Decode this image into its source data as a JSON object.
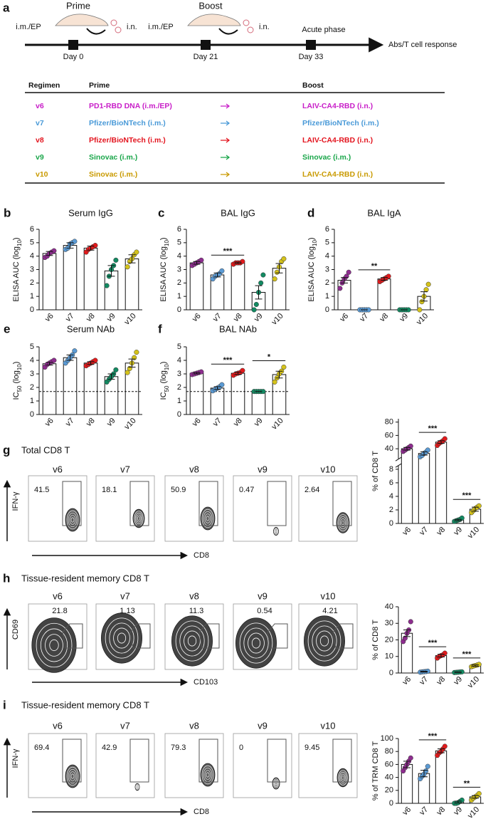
{
  "timeline": {
    "panel": "a",
    "prime": {
      "label": "Prime",
      "routes": [
        "i.m./EP",
        "i.n."
      ],
      "day": "Day 0"
    },
    "boost": {
      "label": "Boost",
      "routes": [
        "i.m./EP",
        "i.n."
      ],
      "day": "Day 21"
    },
    "acute": {
      "label": "Acute phase",
      "day": "Day 33"
    },
    "endpoint": "Abs/T cell response"
  },
  "table": {
    "header": [
      "Regimen",
      "Prime",
      "Boost"
    ],
    "rows": [
      {
        "regimen": "v6",
        "prime": "PD1-RBD DNA (i.m./EP)",
        "boost": "LAIV-CA4-RBD (i.n.)",
        "color": "#c81ec8"
      },
      {
        "regimen": "v7",
        "prime": "Pfizer/BioNTech (i.m.)",
        "boost": "Pfizer/BioNTech (i.m.)",
        "color": "#4a9ad8"
      },
      {
        "regimen": "v8",
        "prime": "Pfizer/BioNTech (i.m.)",
        "boost": "LAIV-CA4-RBD (i.n.)",
        "color": "#e3141e"
      },
      {
        "regimen": "v9",
        "prime": "Sinovac (i.m.)",
        "boost": "Sinovac (i.m.)",
        "color": "#1aa64a"
      },
      {
        "regimen": "v10",
        "prime": "Sinovac (i.m.)",
        "boost": "LAIV-CA4-RBD (i.n.)",
        "color": "#c99a00"
      }
    ]
  },
  "chart_data": [
    {
      "type": "bar",
      "panel": "b",
      "title": "Serum IgG",
      "ylabel": [
        "ELISA AUC (log",
        "10",
        ")"
      ],
      "categories": [
        "v6",
        "v7",
        "v8",
        "v9",
        "v10"
      ],
      "values": [
        4.2,
        4.8,
        4.6,
        2.9,
        3.8
      ],
      "errors": [
        0.15,
        0.2,
        0.15,
        0.4,
        0.3
      ],
      "points": [
        [
          3.9,
          4.0,
          4.2,
          4.3,
          4.4
        ],
        [
          4.5,
          4.6,
          4.9,
          5.0,
          5.1
        ],
        [
          4.3,
          4.5,
          4.6,
          4.7,
          4.8
        ],
        [
          1.8,
          2.5,
          3.0,
          3.3,
          3.7
        ],
        [
          3.2,
          3.6,
          3.8,
          4.1,
          4.3
        ]
      ],
      "colors": [
        "#8e2d8f",
        "#5b9bd5",
        "#e31a1c",
        "#138a62",
        "#d4c21b"
      ],
      "ylim": [
        0,
        6
      ],
      "yticks": [
        0,
        1,
        2,
        3,
        4,
        5,
        6
      ],
      "significance": []
    },
    {
      "type": "bar",
      "panel": "c",
      "title": "BAL IgG",
      "ylabel": [
        "ELISA AUC (log",
        "10",
        ")"
      ],
      "categories": [
        "v6",
        "v7",
        "v8",
        "v9",
        "v10"
      ],
      "values": [
        3.5,
        2.6,
        3.5,
        1.3,
        3.1
      ],
      "errors": [
        0.1,
        0.15,
        0.05,
        0.5,
        0.35
      ],
      "points": [
        [
          3.3,
          3.4,
          3.5,
          3.6,
          3.7
        ],
        [
          2.3,
          2.5,
          2.6,
          2.7,
          2.9
        ],
        [
          3.4,
          3.5,
          3.5,
          3.5,
          3.6
        ],
        [
          0,
          0.4,
          1.3,
          2.0,
          2.6
        ],
        [
          2.3,
          2.8,
          3.2,
          3.6,
          3.8
        ]
      ],
      "colors": [
        "#8e2d8f",
        "#5b9bd5",
        "#e31a1c",
        "#138a62",
        "#d4c21b"
      ],
      "ylim": [
        0,
        6
      ],
      "yticks": [
        0,
        1,
        2,
        3,
        4,
        5,
        6
      ],
      "significance": [
        {
          "between": [
            "v7",
            "v8"
          ],
          "label": "***"
        }
      ]
    },
    {
      "type": "bar",
      "panel": "d",
      "title": "BAL IgA",
      "ylabel": [
        "ELISA AUC (log",
        "10",
        ")"
      ],
      "categories": [
        "v6",
        "v7",
        "v8",
        "v9",
        "v10"
      ],
      "values": [
        2.2,
        0,
        2.3,
        0,
        1.0
      ],
      "errors": [
        0.2,
        0,
        0.1,
        0,
        0.35
      ],
      "points": [
        [
          1.6,
          2.0,
          2.3,
          2.5,
          2.8
        ],
        [
          0,
          0,
          0,
          0,
          0
        ],
        [
          2.1,
          2.2,
          2.3,
          2.4,
          2.5
        ],
        [
          0,
          0,
          0,
          0,
          0
        ],
        [
          0,
          0.6,
          1.0,
          1.5,
          1.9
        ]
      ],
      "colors": [
        "#8e2d8f",
        "#5b9bd5",
        "#e31a1c",
        "#138a62",
        "#d4c21b"
      ],
      "ylim": [
        0,
        6
      ],
      "yticks": [
        0,
        1,
        2,
        3,
        4,
        5,
        6
      ],
      "significance": [
        {
          "between": [
            "v7",
            "v8"
          ],
          "label": "**"
        }
      ]
    },
    {
      "type": "bar",
      "panel": "e",
      "title": "Serum NAb",
      "ylabel": [
        "IC",
        "50",
        " (log",
        "10",
        ")"
      ],
      "categories": [
        "v6",
        "v7",
        "v8",
        "v9",
        "v10"
      ],
      "values": [
        3.75,
        4.2,
        3.8,
        2.8,
        3.8
      ],
      "errors": [
        0.1,
        0.2,
        0.1,
        0.2,
        0.3
      ],
      "points": [
        [
          3.5,
          3.7,
          3.8,
          3.9,
          4.0
        ],
        [
          3.8,
          4.0,
          4.2,
          4.4,
          4.7
        ],
        [
          3.6,
          3.7,
          3.8,
          3.9,
          4.0
        ],
        [
          2.4,
          2.6,
          2.8,
          3.0,
          3.3
        ],
        [
          3.1,
          3.4,
          3.8,
          4.2,
          4.6
        ]
      ],
      "colors": [
        "#8e2d8f",
        "#5b9bd5",
        "#e31a1c",
        "#138a62",
        "#d4c21b"
      ],
      "ylim": [
        0,
        5
      ],
      "yticks": [
        0,
        1,
        2,
        3,
        4,
        5
      ],
      "threshold": 1.7,
      "significance": []
    },
    {
      "type": "bar",
      "panel": "f",
      "title": "BAL NAb",
      "ylabel": [
        "IC",
        "50",
        " (log",
        "10",
        ")"
      ],
      "categories": [
        "v6",
        "v7",
        "v8",
        "v9",
        "v10"
      ],
      "values": [
        3.05,
        1.95,
        3.05,
        1.7,
        2.95
      ],
      "errors": [
        0.05,
        0.1,
        0.08,
        0,
        0.25
      ],
      "points": [
        [
          2.95,
          3.0,
          3.05,
          3.1,
          3.15
        ],
        [
          1.75,
          1.85,
          1.95,
          2.05,
          2.2
        ],
        [
          2.9,
          3.0,
          3.05,
          3.1,
          3.25
        ],
        [
          1.7,
          1.7,
          1.7,
          1.7,
          1.7
        ],
        [
          2.4,
          2.7,
          3.0,
          3.2,
          3.5
        ]
      ],
      "colors": [
        "#8e2d8f",
        "#5b9bd5",
        "#e31a1c",
        "#138a62",
        "#d4c21b"
      ],
      "ylim": [
        0,
        5
      ],
      "yticks": [
        0,
        1,
        2,
        3,
        4,
        5
      ],
      "threshold": 1.7,
      "significance": [
        {
          "between": [
            "v7",
            "v8"
          ],
          "label": "***"
        },
        {
          "between": [
            "v9",
            "v10"
          ],
          "label": "*"
        }
      ]
    },
    {
      "type": "bar",
      "ylabel": [
        "% of CD8 T"
      ],
      "categories": [
        "v6",
        "v7",
        "v8",
        "v9",
        "v10"
      ],
      "values": [
        40,
        33,
        50,
        0.5,
        2.1
      ],
      "errors": [
        2,
        2.5,
        2,
        0.1,
        0.3
      ],
      "points": [
        [
          36,
          38,
          40,
          42,
          44
        ],
        [
          28,
          30,
          33,
          35,
          38
        ],
        [
          45,
          48,
          50,
          52,
          55
        ],
        [
          0.3,
          0.4,
          0.5,
          0.6,
          0.8
        ],
        [
          1.6,
          1.9,
          2.2,
          2.4,
          2.6
        ]
      ],
      "colors": [
        "#8e2d8f",
        "#5b9bd5",
        "#e31a1c",
        "#138a62",
        "#d4c21b"
      ],
      "ylim": [
        [
          0,
          8.5
        ],
        [
          25,
          85
        ]
      ],
      "yticks": [
        0,
        2,
        4,
        6,
        8,
        40,
        60,
        80
      ],
      "significance": [
        {
          "between": [
            "v7",
            "v8"
          ],
          "label": "***"
        },
        {
          "between": [
            "v9",
            "v10"
          ],
          "label": "***"
        }
      ]
    },
    {
      "type": "bar",
      "ylabel": [
        "% of CD8 T"
      ],
      "categories": [
        "v6",
        "v7",
        "v8",
        "v9",
        "v10"
      ],
      "values": [
        24,
        0.8,
        10.5,
        0.5,
        4.5
      ],
      "errors": [
        2,
        0.2,
        0.8,
        0.1,
        0.4
      ],
      "points": [
        [
          19,
          21,
          24,
          26,
          31
        ],
        [
          0.5,
          0.7,
          0.8,
          0.9,
          1.1
        ],
        [
          9,
          10,
          10.5,
          11,
          12
        ],
        [
          0.3,
          0.4,
          0.5,
          0.6,
          0.7
        ],
        [
          3.8,
          4.2,
          4.5,
          4.8,
          5.2
        ]
      ],
      "colors": [
        "#8e2d8f",
        "#5b9bd5",
        "#e31a1c",
        "#138a62",
        "#d4c21b"
      ],
      "ylim": [
        0,
        40
      ],
      "yticks": [
        0,
        10,
        20,
        30,
        40
      ],
      "significance": [
        {
          "between": [
            "v7",
            "v8"
          ],
          "label": "***"
        },
        {
          "between": [
            "v9",
            "v10"
          ],
          "label": "***"
        }
      ]
    },
    {
      "type": "bar",
      "ylabel": [
        "% of TRM CD8 T"
      ],
      "categories": [
        "v6",
        "v7",
        "v8",
        "v9",
        "v10"
      ],
      "values": [
        60,
        46,
        81,
        2,
        10
      ],
      "errors": [
        5,
        5,
        3,
        1.5,
        2
      ],
      "points": [
        [
          50,
          55,
          60,
          65,
          70
        ],
        [
          38,
          42,
          45,
          50,
          57
        ],
        [
          74,
          78,
          80,
          84,
          88
        ],
        [
          0,
          0,
          1,
          3,
          5
        ],
        [
          5,
          8,
          10,
          12,
          15
        ]
      ],
      "colors": [
        "#8e2d8f",
        "#5b9bd5",
        "#e31a1c",
        "#138a62",
        "#d4c21b"
      ],
      "ylim": [
        0,
        100
      ],
      "yticks": [
        0,
        20,
        40,
        60,
        80,
        100
      ],
      "significance": [
        {
          "between": [
            "v7",
            "v8"
          ],
          "label": "***"
        },
        {
          "between": [
            "v9",
            "v10"
          ],
          "label": "**"
        }
      ]
    }
  ],
  "flow_panels": [
    {
      "panel": "g",
      "title": "Total CD8 T",
      "yaxis": "IFN-γ",
      "xaxis": "CD8",
      "samples": [
        {
          "label": "v6",
          "gate": 41.5
        },
        {
          "label": "v7",
          "gate": 18.1
        },
        {
          "label": "v8",
          "gate": 50.9
        },
        {
          "label": "v9",
          "gate": 0.47
        },
        {
          "label": "v10",
          "gate": 2.64
        }
      ]
    },
    {
      "panel": "h",
      "title": "Tissue-resident memory CD8 T",
      "yaxis": "CD69",
      "xaxis": "CD103",
      "samples": [
        {
          "label": "v6",
          "gate": 21.8
        },
        {
          "label": "v7",
          "gate": 1.13
        },
        {
          "label": "v8",
          "gate": 11.3
        },
        {
          "label": "v9",
          "gate": 0.54
        },
        {
          "label": "v10",
          "gate": 4.21
        }
      ]
    },
    {
      "panel": "i",
      "title": "Tissue-resident memory CD8 T",
      "yaxis": "IFN-γ",
      "xaxis": "CD8",
      "samples": [
        {
          "label": "v6",
          "gate": 69.4
        },
        {
          "label": "v7",
          "gate": 42.9
        },
        {
          "label": "v8",
          "gate": 79.3
        },
        {
          "label": "v9",
          "gate": 0
        },
        {
          "label": "v10",
          "gate": 9.45
        }
      ]
    }
  ]
}
